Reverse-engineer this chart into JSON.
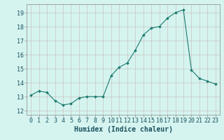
{
  "x": [
    0,
    1,
    2,
    3,
    4,
    5,
    6,
    7,
    8,
    9,
    10,
    11,
    12,
    13,
    14,
    15,
    16,
    17,
    18,
    19,
    20,
    21,
    22,
    23
  ],
  "y": [
    13.1,
    13.4,
    13.3,
    12.7,
    12.4,
    12.5,
    12.9,
    13.0,
    13.0,
    13.0,
    14.5,
    15.1,
    15.4,
    16.3,
    17.4,
    17.9,
    18.0,
    18.6,
    19.0,
    19.2,
    14.9,
    14.3,
    14.1,
    13.9
  ],
  "xlabel": "Humidex (Indice chaleur)",
  "ylim": [
    11.7,
    19.6
  ],
  "xlim": [
    -0.5,
    23.5
  ],
  "yticks": [
    12,
    13,
    14,
    15,
    16,
    17,
    18,
    19
  ],
  "xticks": [
    0,
    1,
    2,
    3,
    4,
    5,
    6,
    7,
    8,
    9,
    10,
    11,
    12,
    13,
    14,
    15,
    16,
    17,
    18,
    19,
    20,
    21,
    22,
    23
  ],
  "line_color": "#1a7a6e",
  "marker": "D",
  "marker_size": 1.8,
  "bg_color": "#d5f4ef",
  "grid_color_v": "#c8b8b8",
  "grid_color_h": "#c8b8b8",
  "text_color": "#1a5060",
  "xlabel_fontsize": 7,
  "tick_fontsize": 6
}
